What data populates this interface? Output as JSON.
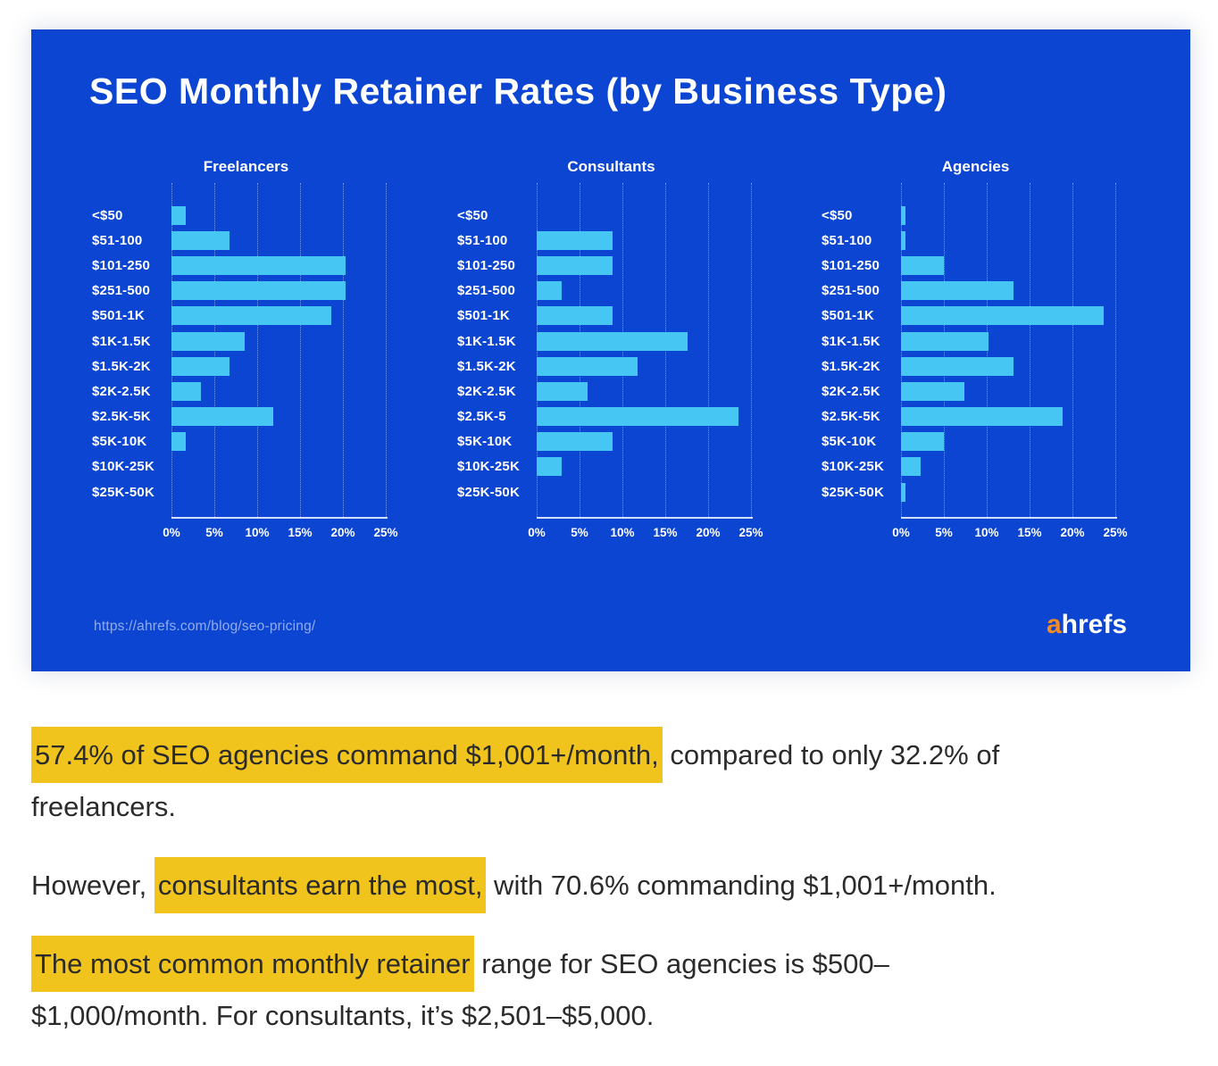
{
  "card": {
    "source_url": "https://ahrefs.com/blog/seo-pricing/",
    "logo": {
      "prefix": "a",
      "suffix": "hrefs"
    }
  },
  "colors": {
    "card_background": "#0C45D2",
    "bar": "#45C6F3",
    "highlight": "#F0C41C",
    "logo_orange": "#F98A1F",
    "body_text": "#2B2B2B"
  },
  "chart_data": {
    "type": "bar",
    "orientation": "horizontal",
    "title": "SEO Monthly Retainer Rates (by Business Type)",
    "unit": "% of respondents",
    "axis": {
      "ticks": [
        "0%",
        "5%",
        "10%",
        "15%",
        "20%",
        "25%"
      ],
      "min": 0,
      "max": 25,
      "grid": "dotted-vertical"
    },
    "charts": [
      {
        "title": "Freelancers",
        "categories": [
          "<$50",
          "$51-100",
          "$101-250",
          "$251-500",
          "$501-1K",
          "$1K-1.5K",
          "$1.5K-2K",
          "$2K-2.5K",
          "$2.5K-5K",
          "$5K-10K",
          "$10K-25K",
          "$25K-50K"
        ],
        "values": [
          1.7,
          6.8,
          20.3,
          20.3,
          18.6,
          8.5,
          6.8,
          3.4,
          11.9,
          1.7,
          0,
          0
        ]
      },
      {
        "title": "Consultants",
        "categories": [
          "<$50",
          "$51-100",
          "$101-250",
          "$251-500",
          "$501-1K",
          "$1K-1.5K",
          "$1.5K-2K",
          "$2K-2.5K",
          "$2.5K-5",
          "$5K-10K",
          "$10K-25K",
          "$25K-50K"
        ],
        "values": [
          0,
          8.8,
          8.8,
          2.9,
          8.8,
          17.6,
          11.8,
          5.9,
          23.5,
          8.8,
          2.9,
          0
        ]
      },
      {
        "title": "Agencies",
        "categories": [
          "<$50",
          "$51-100",
          "$101-250",
          "$251-500",
          "$501-1K",
          "$1K-1.5K",
          "$1.5K-2K",
          "$2K-2.5K",
          "$2.5K-5K",
          "$5K-10K",
          "$10K-25K",
          "$25K-50K"
        ],
        "values": [
          0.5,
          0.5,
          5.0,
          13.1,
          23.6,
          10.2,
          13.1,
          7.4,
          18.9,
          5.0,
          2.3,
          0.5
        ]
      }
    ]
  },
  "paragraphs": [
    {
      "lines": [
        {
          "segments": [
            {
              "text": "57.4% of SEO agencies command $1,001+/month,",
              "highlight": true
            },
            {
              "text": " compared to only 32.2% of",
              "highlight": false
            }
          ]
        },
        {
          "segments": [
            {
              "text": "freelancers.",
              "highlight": false
            }
          ]
        }
      ]
    },
    {
      "lines": [
        {
          "segments": [
            {
              "text": "However, ",
              "highlight": false
            },
            {
              "text": "consultants earn the most,",
              "highlight": true
            },
            {
              "text": " with 70.6% commanding $1,001+/month.",
              "highlight": false
            }
          ]
        }
      ]
    },
    {
      "lines": [
        {
          "segments": [
            {
              "text": "The most common monthly retainer",
              "highlight": true
            },
            {
              "text": " range for SEO agencies is $500–",
              "highlight": false
            }
          ]
        },
        {
          "segments": [
            {
              "text": "$1,000/month. For consultants, it’s $2,501–$5,000.",
              "highlight": false
            }
          ]
        }
      ]
    }
  ]
}
